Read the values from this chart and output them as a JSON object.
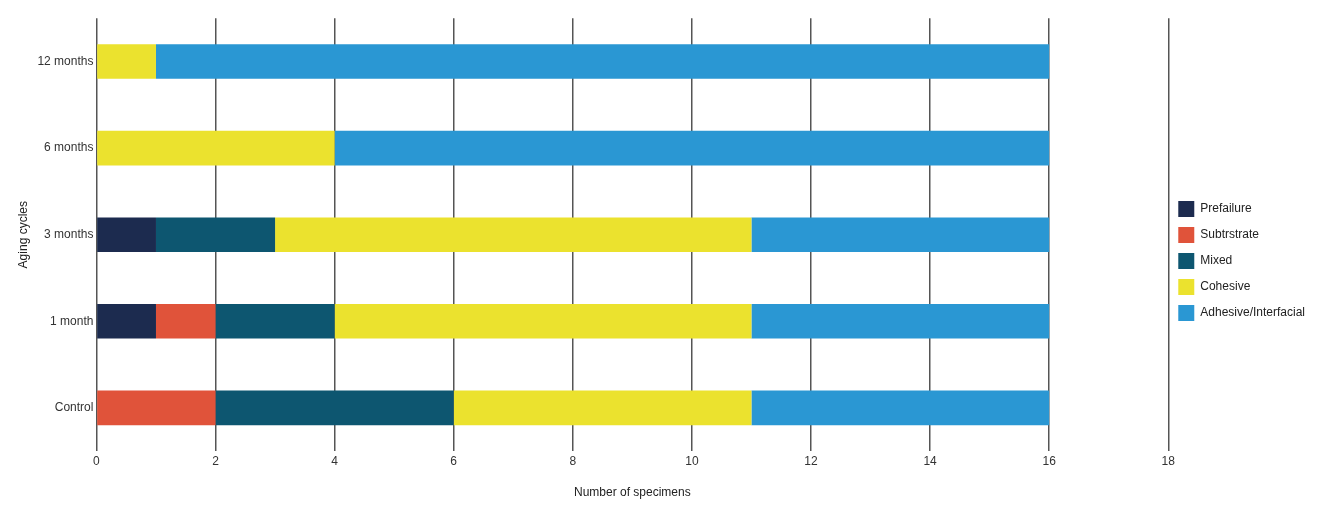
{
  "chart_data": {
    "type": "bar",
    "orientation": "horizontal",
    "stacked": true,
    "xlabel": "Number of specimens",
    "ylabel": "Aging cycles",
    "categories": [
      "12 months",
      "6 months",
      "3 months",
      "1 month",
      "Control"
    ],
    "series": [
      {
        "name": "Prefailure",
        "color": "#1c2b4f",
        "values": [
          0,
          0,
          1,
          1,
          0
        ]
      },
      {
        "name": "Subtrstrate",
        "color": "#e0533a",
        "values": [
          0,
          0,
          0,
          1,
          2
        ]
      },
      {
        "name": "Mixed",
        "color": "#0d5670",
        "values": [
          0,
          0,
          2,
          2,
          4
        ]
      },
      {
        "name": "Cohesive",
        "color": "#ebe22e",
        "values": [
          1,
          4,
          8,
          7,
          5
        ]
      },
      {
        "name": "Adhesive/Interfacial",
        "color": "#2a97d3",
        "values": [
          15,
          12,
          5,
          5,
          5
        ]
      }
    ],
    "xlim": [
      0,
      18
    ],
    "xticks": [
      0,
      2,
      4,
      6,
      8,
      10,
      12,
      14,
      16,
      18
    ],
    "grid": "x",
    "legend": "right"
  }
}
